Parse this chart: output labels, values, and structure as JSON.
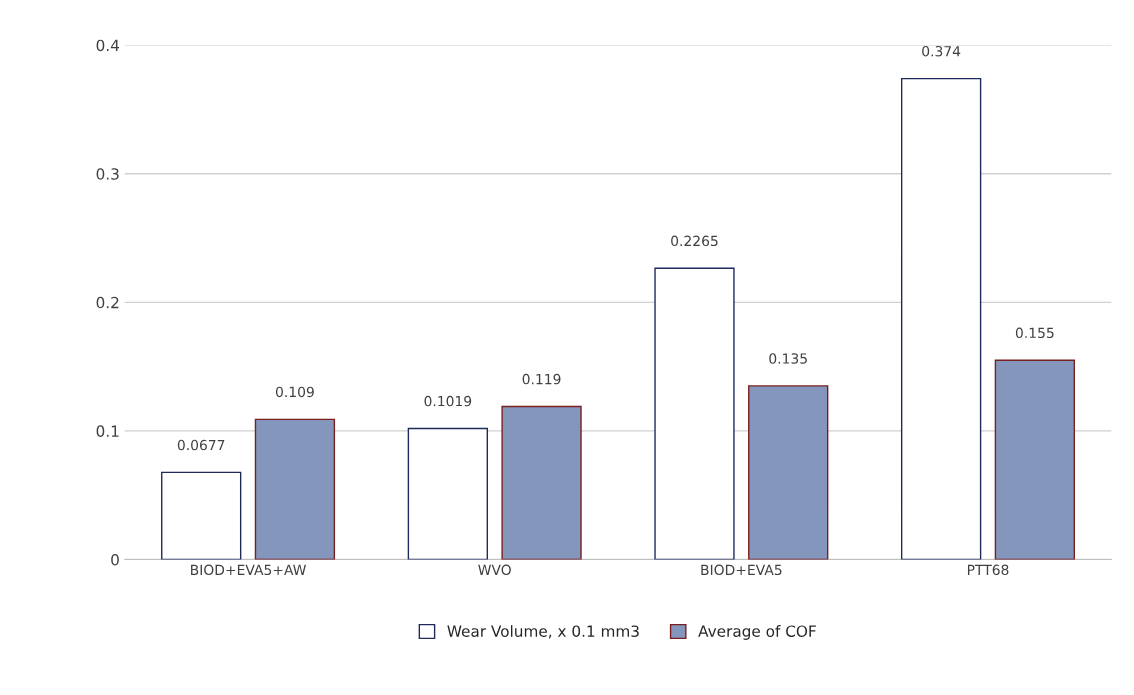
{
  "chart_data": {
    "type": "bar",
    "categories": [
      "BIOD+EVA5+AW",
      "WVO",
      "BIOD+EVA5",
      "PTT68"
    ],
    "series": [
      {
        "name": "Wear Volume, x 0.1 mm3",
        "color": "#ffffff",
        "values": [
          0.0677,
          0.1019,
          0.2265,
          0.374
        ]
      },
      {
        "name": "Average of COF",
        "color": "#8496bc",
        "values": [
          0.109,
          0.119,
          0.135,
          0.155
        ]
      }
    ],
    "ylim": [
      0,
      0.4
    ],
    "yticks": [
      0,
      0.1,
      0.2,
      0.3,
      0.4
    ],
    "grid": "y",
    "legend": "bottom",
    "data_labels": true
  }
}
